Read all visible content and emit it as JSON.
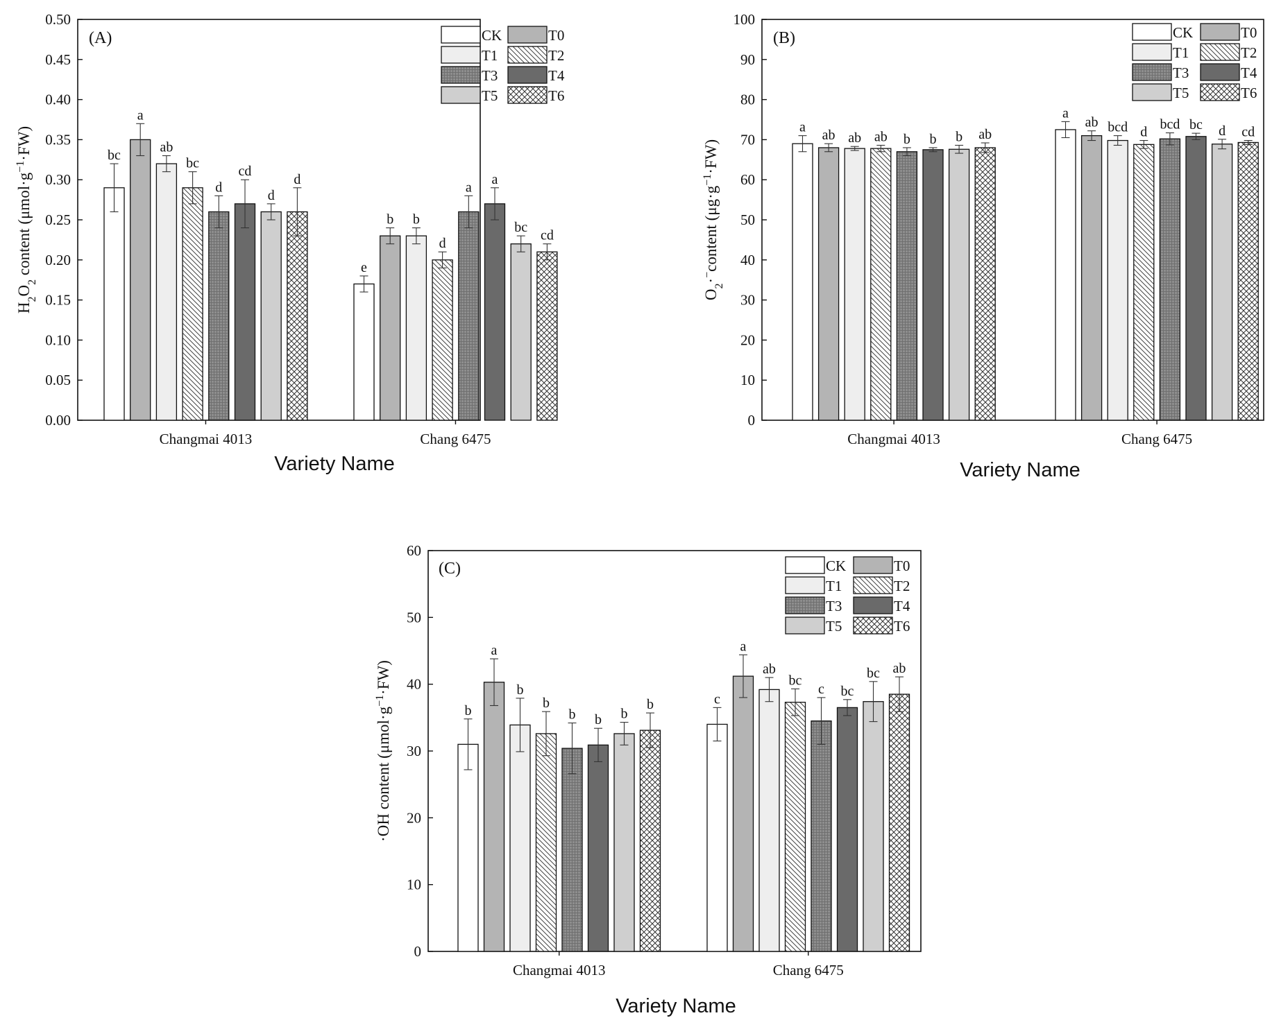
{
  "legend_labels": [
    "CK",
    "T0",
    "T1",
    "T2",
    "T3",
    "T4",
    "T5",
    "T6"
  ],
  "series_styles": {
    "CK": {
      "fill": "#ffffff",
      "pattern": "none"
    },
    "T0": {
      "fill": "#b4b4b4",
      "pattern": "none"
    },
    "T1": {
      "fill": "#eeeeee",
      "pattern": "none"
    },
    "T2": {
      "fill": "#ffffff",
      "pattern": "diagonal"
    },
    "T3": {
      "fill": "#8e8e8e",
      "pattern": "grid"
    },
    "T4": {
      "fill": "#6a6a6a",
      "pattern": "none"
    },
    "T5": {
      "fill": "#cfcfcf",
      "pattern": "none"
    },
    "T6": {
      "fill": "#ffffff",
      "pattern": "crosshatch"
    }
  },
  "chart_data": [
    {
      "panel": "(A)",
      "type": "bar",
      "title": "",
      "xlabel": "Variety Name",
      "ylabel": "H2O2 content (μmol·g−1·FW)",
      "ylabel_main": "H",
      "ylabel_sub1": "2",
      "ylabel_mid": "O",
      "ylabel_sub2": "2",
      "ylabel_rest": " content (μmol·g",
      "ylabel_sup": "−1",
      "ylabel_end": "·FW)",
      "ylim": [
        0,
        0.5
      ],
      "yticks": [
        "0.00",
        "0.05",
        "0.10",
        "0.15",
        "0.20",
        "0.25",
        "0.30",
        "0.35",
        "0.40",
        "0.45",
        "0.50"
      ],
      "categories": [
        "Changmai 4013",
        "Chang 6475"
      ],
      "series": [
        {
          "name": "CK",
          "values": [
            0.29,
            0.17
          ],
          "errors": [
            0.03,
            0.01
          ],
          "labels": [
            "bc",
            "e"
          ]
        },
        {
          "name": "T0",
          "values": [
            0.35,
            0.23
          ],
          "errors": [
            0.02,
            0.01
          ],
          "labels": [
            "a",
            "b"
          ]
        },
        {
          "name": "T1",
          "values": [
            0.32,
            0.23
          ],
          "errors": [
            0.01,
            0.01
          ],
          "labels": [
            "ab",
            "b"
          ]
        },
        {
          "name": "T2",
          "values": [
            0.29,
            0.2
          ],
          "errors": [
            0.02,
            0.01
          ],
          "labels": [
            "bc",
            "d"
          ]
        },
        {
          "name": "T3",
          "values": [
            0.26,
            0.26
          ],
          "errors": [
            0.02,
            0.02
          ],
          "labels": [
            "d",
            "a"
          ]
        },
        {
          "name": "T4",
          "values": [
            0.27,
            0.27
          ],
          "errors": [
            0.03,
            0.02
          ],
          "labels": [
            "cd",
            "a"
          ]
        },
        {
          "name": "T5",
          "values": [
            0.26,
            0.22
          ],
          "errors": [
            0.01,
            0.01
          ],
          "labels": [
            "d",
            "bc"
          ]
        },
        {
          "name": "T6",
          "values": [
            0.26,
            0.21
          ],
          "errors": [
            0.03,
            0.01
          ],
          "labels": [
            "d",
            "cd"
          ]
        }
      ]
    },
    {
      "panel": "(B)",
      "type": "bar",
      "title": "",
      "xlabel": "Variety Name",
      "ylabel": "O2·− content (μg·g−1·FW)",
      "ylabel_main": "O",
      "ylabel_sub1": "2",
      "ylabel_mid": "·",
      "ylabel_sup0": "−",
      "ylabel_rest": "content (μg·g",
      "ylabel_sup": "−1",
      "ylabel_end": "·FW)",
      "ylim": [
        0,
        100
      ],
      "yticks": [
        "0",
        "10",
        "20",
        "30",
        "40",
        "50",
        "60",
        "70",
        "80",
        "90",
        "100"
      ],
      "categories": [
        "Changmai 4013",
        "Chang 6475"
      ],
      "series": [
        {
          "name": "CK",
          "values": [
            69.0,
            72.5
          ],
          "errors": [
            2.0,
            2.0
          ],
          "labels": [
            "a",
            "a"
          ]
        },
        {
          "name": "T0",
          "values": [
            68.0,
            71.0
          ],
          "errors": [
            1.0,
            1.2
          ],
          "labels": [
            "ab",
            "ab"
          ]
        },
        {
          "name": "T1",
          "values": [
            67.8,
            69.8
          ],
          "errors": [
            0.5,
            1.2
          ],
          "labels": [
            "ab",
            "bcd"
          ]
        },
        {
          "name": "T2",
          "values": [
            67.8,
            68.8
          ],
          "errors": [
            0.8,
            1.0
          ],
          "labels": [
            "ab",
            "d"
          ]
        },
        {
          "name": "T3",
          "values": [
            67.0,
            70.2
          ],
          "errors": [
            1.0,
            1.5
          ],
          "labels": [
            "b",
            "bcd"
          ]
        },
        {
          "name": "T4",
          "values": [
            67.5,
            70.8
          ],
          "errors": [
            0.5,
            0.8
          ],
          "labels": [
            "b",
            "bc"
          ]
        },
        {
          "name": "T5",
          "values": [
            67.6,
            68.9
          ],
          "errors": [
            1.0,
            1.2
          ],
          "labels": [
            "b",
            "d"
          ]
        },
        {
          "name": "T6",
          "values": [
            68.0,
            69.3
          ],
          "errors": [
            1.2,
            0.5
          ],
          "labels": [
            "ab",
            "cd"
          ]
        }
      ]
    },
    {
      "panel": "(C)",
      "type": "bar",
      "title": "",
      "xlabel": "Variety Name",
      "ylabel": "·OH content (μmol·g−1·FW)",
      "ylabel_main": "·OH content (μmol·g",
      "ylabel_sup": "−1",
      "ylabel_end": "·FW)",
      "ylim": [
        0,
        60
      ],
      "yticks": [
        "0",
        "10",
        "20",
        "30",
        "40",
        "50",
        "60"
      ],
      "categories": [
        "Changmai 4013",
        "Chang 6475"
      ],
      "series": [
        {
          "name": "CK",
          "values": [
            31.0,
            34.0
          ],
          "errors": [
            3.8,
            2.5
          ],
          "labels": [
            "b",
            "c"
          ]
        },
        {
          "name": "T0",
          "values": [
            40.3,
            41.2
          ],
          "errors": [
            3.5,
            3.2
          ],
          "labels": [
            "a",
            "a"
          ]
        },
        {
          "name": "T1",
          "values": [
            33.9,
            39.2
          ],
          "errors": [
            4.0,
            1.8
          ],
          "labels": [
            "b",
            "ab"
          ]
        },
        {
          "name": "T2",
          "values": [
            32.6,
            37.3
          ],
          "errors": [
            3.3,
            2.0
          ],
          "labels": [
            "b",
            "bc"
          ]
        },
        {
          "name": "T3",
          "values": [
            30.4,
            34.5
          ],
          "errors": [
            3.8,
            3.5
          ],
          "labels": [
            "b",
            "c"
          ]
        },
        {
          "name": "T4",
          "values": [
            30.9,
            36.5
          ],
          "errors": [
            2.5,
            1.2
          ],
          "labels": [
            "b",
            "bc"
          ]
        },
        {
          "name": "T5",
          "values": [
            32.6,
            37.4
          ],
          "errors": [
            1.7,
            3.0
          ],
          "labels": [
            "b",
            "bc"
          ]
        },
        {
          "name": "T6",
          "values": [
            33.1,
            38.5
          ],
          "errors": [
            2.6,
            2.6
          ],
          "labels": [
            "b",
            "ab"
          ]
        }
      ]
    }
  ]
}
